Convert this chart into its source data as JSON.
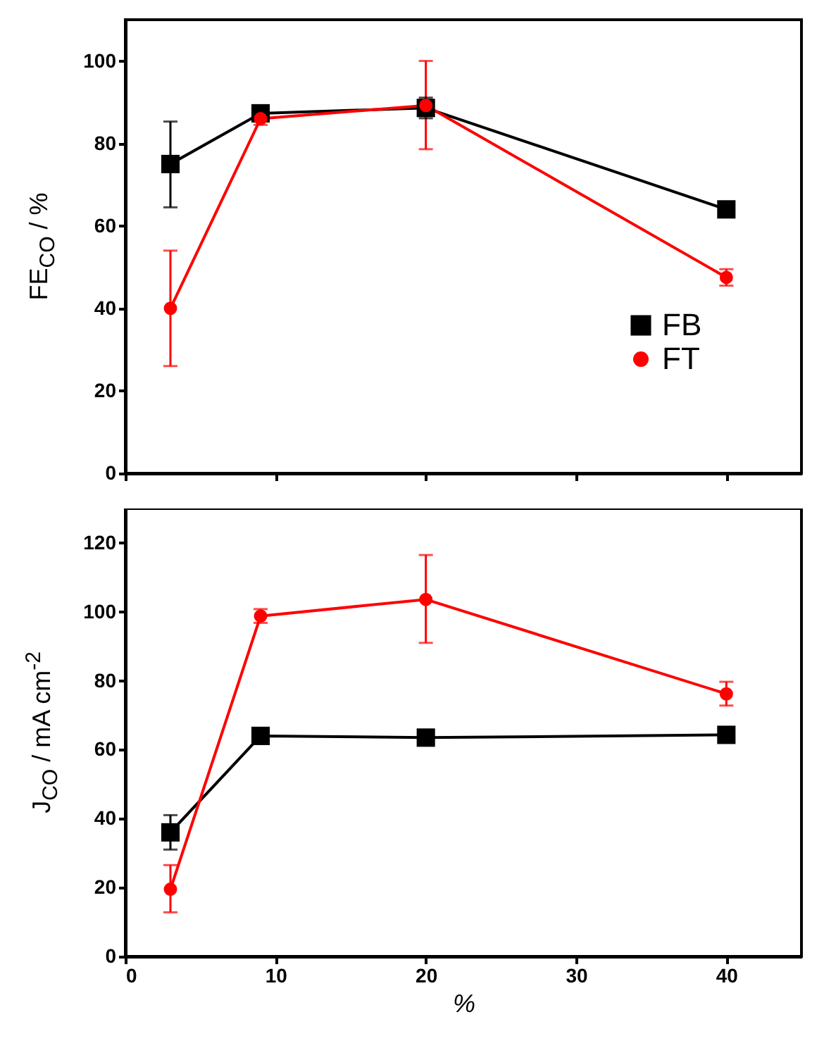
{
  "chart_data": [
    {
      "type": "line",
      "ylabel": "FE$_{CO}$ / %",
      "x": [
        3,
        9,
        20,
        40
      ],
      "xlim": [
        0,
        45
      ],
      "xticks": [
        0,
        10,
        20,
        30,
        40
      ],
      "ylim": [
        0,
        110
      ],
      "yticks": [
        0,
        20,
        40,
        60,
        80,
        100
      ],
      "tick_labels": "y",
      "legend": "bottom right",
      "series": [
        {
          "name": "FB",
          "color": "#000000",
          "marker": "square",
          "values": [
            75,
            87.3,
            88.6,
            64
          ],
          "errors": [
            [
              64.5,
              85.3
            ],
            1,
            2.5,
            1
          ]
        },
        {
          "name": "FT",
          "color": "#ff0000",
          "marker": "circle",
          "values": [
            40,
            86,
            89.2,
            47.5
          ],
          "errors": [
            [
              26,
              54
            ],
            1.5,
            [
              78.6,
              100
            ],
            2
          ]
        }
      ]
    },
    {
      "type": "line",
      "xlabel": "%",
      "ylabel": "J$_{CO}$ / mA cm$^{-2}$",
      "x": [
        3,
        9,
        20,
        40
      ],
      "xlim": [
        0,
        45
      ],
      "xticks": [
        0,
        10,
        20,
        30,
        40
      ],
      "ylim": [
        0,
        130
      ],
      "yticks": [
        0,
        20,
        40,
        60,
        80,
        100,
        120
      ],
      "series": [
        {
          "color": "#000000",
          "marker": "square",
          "values": [
            36,
            64,
            63.5,
            64.3
          ],
          "errors": [
            [
              31,
              41
            ],
            null,
            null,
            null
          ]
        },
        {
          "color": "#ff0000",
          "marker": "circle",
          "values": [
            19.5,
            98.8,
            103.6,
            76.2
          ],
          "errors": [
            [
              12.8,
              26.5
            ],
            2,
            [
              91,
              116.5
            ],
            [
              72.8,
              79.7
            ]
          ]
        }
      ]
    }
  ]
}
